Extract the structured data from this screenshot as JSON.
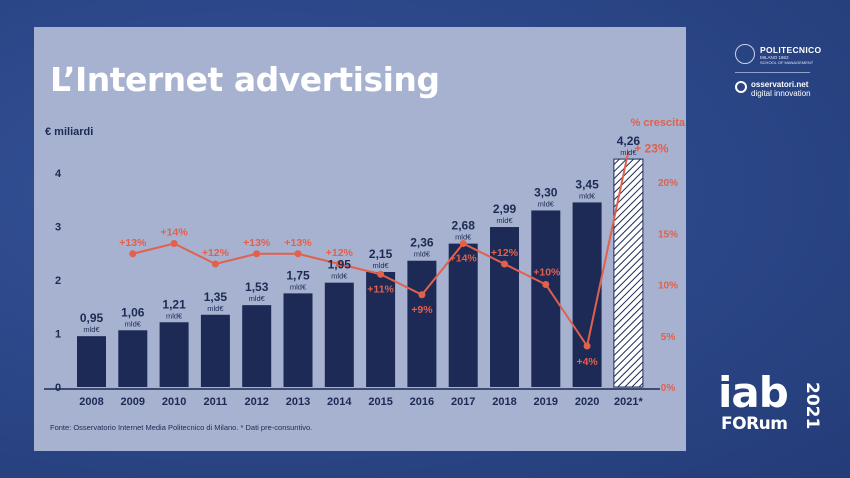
{
  "slide": {
    "title": "L’Internet advertising",
    "source": "Fonte: Osservatorio Internet Media Politecnico di Milano. * Dati pre-consuntivo."
  },
  "logos": {
    "politecnico_name": "POLITECNICO",
    "politecnico_sub1": "MILANO 1863",
    "politecnico_sub2": "SCHOOL OF MANAGEMENT",
    "osservatori_line1": "osservatori.net",
    "osservatori_line2": "digital innovation",
    "iab_word": "iab",
    "iab_forum": "FORum",
    "iab_year": "2021"
  },
  "colors": {
    "bar": "#1c2a55",
    "growth": "#e2604c",
    "panel": "#a6b2cf"
  },
  "chart_data": {
    "type": "bar",
    "ylabel": "€ miliardi",
    "y2label": "% crescita",
    "categories": [
      "2008",
      "2009",
      "2010",
      "2011",
      "2012",
      "2013",
      "2014",
      "2015",
      "2016",
      "2017",
      "2018",
      "2019",
      "2020",
      "2021*"
    ],
    "values": [
      0.95,
      1.06,
      1.21,
      1.35,
      1.53,
      1.75,
      1.95,
      2.15,
      2.36,
      2.68,
      2.99,
      3.3,
      3.45,
      4.26
    ],
    "value_labels": [
      "0,95",
      "1,06",
      "1,21",
      "1,35",
      "1,53",
      "1,75",
      "1,95",
      "2,15",
      "2,36",
      "2,68",
      "2,99",
      "3,30",
      "3,45",
      "4,26"
    ],
    "unit_label": "mld€",
    "hatched_last": true,
    "ylim": [
      0,
      4
    ],
    "yticks": [
      "0",
      "1",
      "2",
      "3",
      "4"
    ],
    "growth_series": {
      "name": "% crescita",
      "type": "line",
      "categories": [
        "2009",
        "2010",
        "2011",
        "2012",
        "2013",
        "2014",
        "2015",
        "2016",
        "2017",
        "2018",
        "2019",
        "2020",
        "2021*"
      ],
      "values": [
        13,
        14,
        12,
        13,
        13,
        12,
        11,
        9,
        14,
        12,
        10,
        4,
        23
      ],
      "labels": [
        "+13%",
        "+14%",
        "+12%",
        "+13%",
        "+13%",
        "+12%",
        "+11%",
        "+9%",
        "+14%",
        "+12%",
        "+10%",
        "+4%",
        "+ 23%"
      ],
      "ylim": [
        0,
        20
      ],
      "yticks": [
        "0%",
        "5%",
        "10%",
        "15%",
        "20%"
      ]
    },
    "grid": false,
    "legend": "none"
  }
}
